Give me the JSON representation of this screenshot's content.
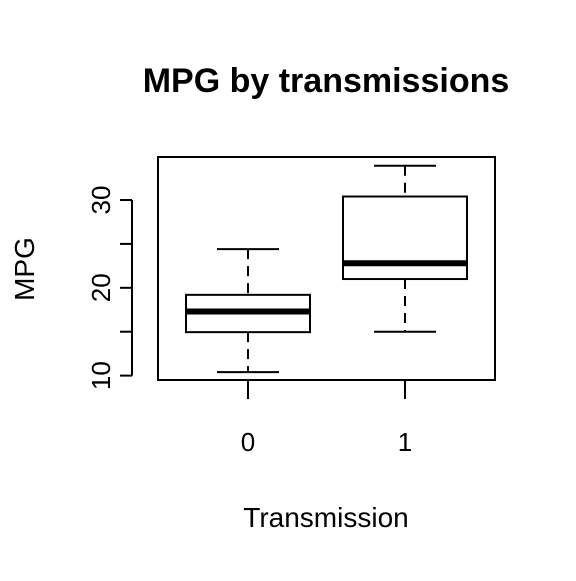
{
  "chart_data": {
    "type": "boxplot",
    "title": "MPG by transmissions",
    "xlabel": "Transmission",
    "ylabel": "MPG",
    "categories": [
      "0",
      "1"
    ],
    "boxes": [
      {
        "category": "0",
        "whisker_low": 10.4,
        "q1": 14.95,
        "median": 17.3,
        "q3": 19.2,
        "whisker_high": 24.4
      },
      {
        "category": "1",
        "whisker_low": 15.0,
        "q1": 21.0,
        "median": 22.8,
        "q3": 30.4,
        "whisker_high": 33.9
      }
    ],
    "yticks": [
      10,
      20,
      30
    ],
    "ytick_labels": [
      "10",
      "20",
      "30"
    ],
    "ylim": [
      9.5,
      34.9
    ],
    "grid": false,
    "legend": "none"
  }
}
